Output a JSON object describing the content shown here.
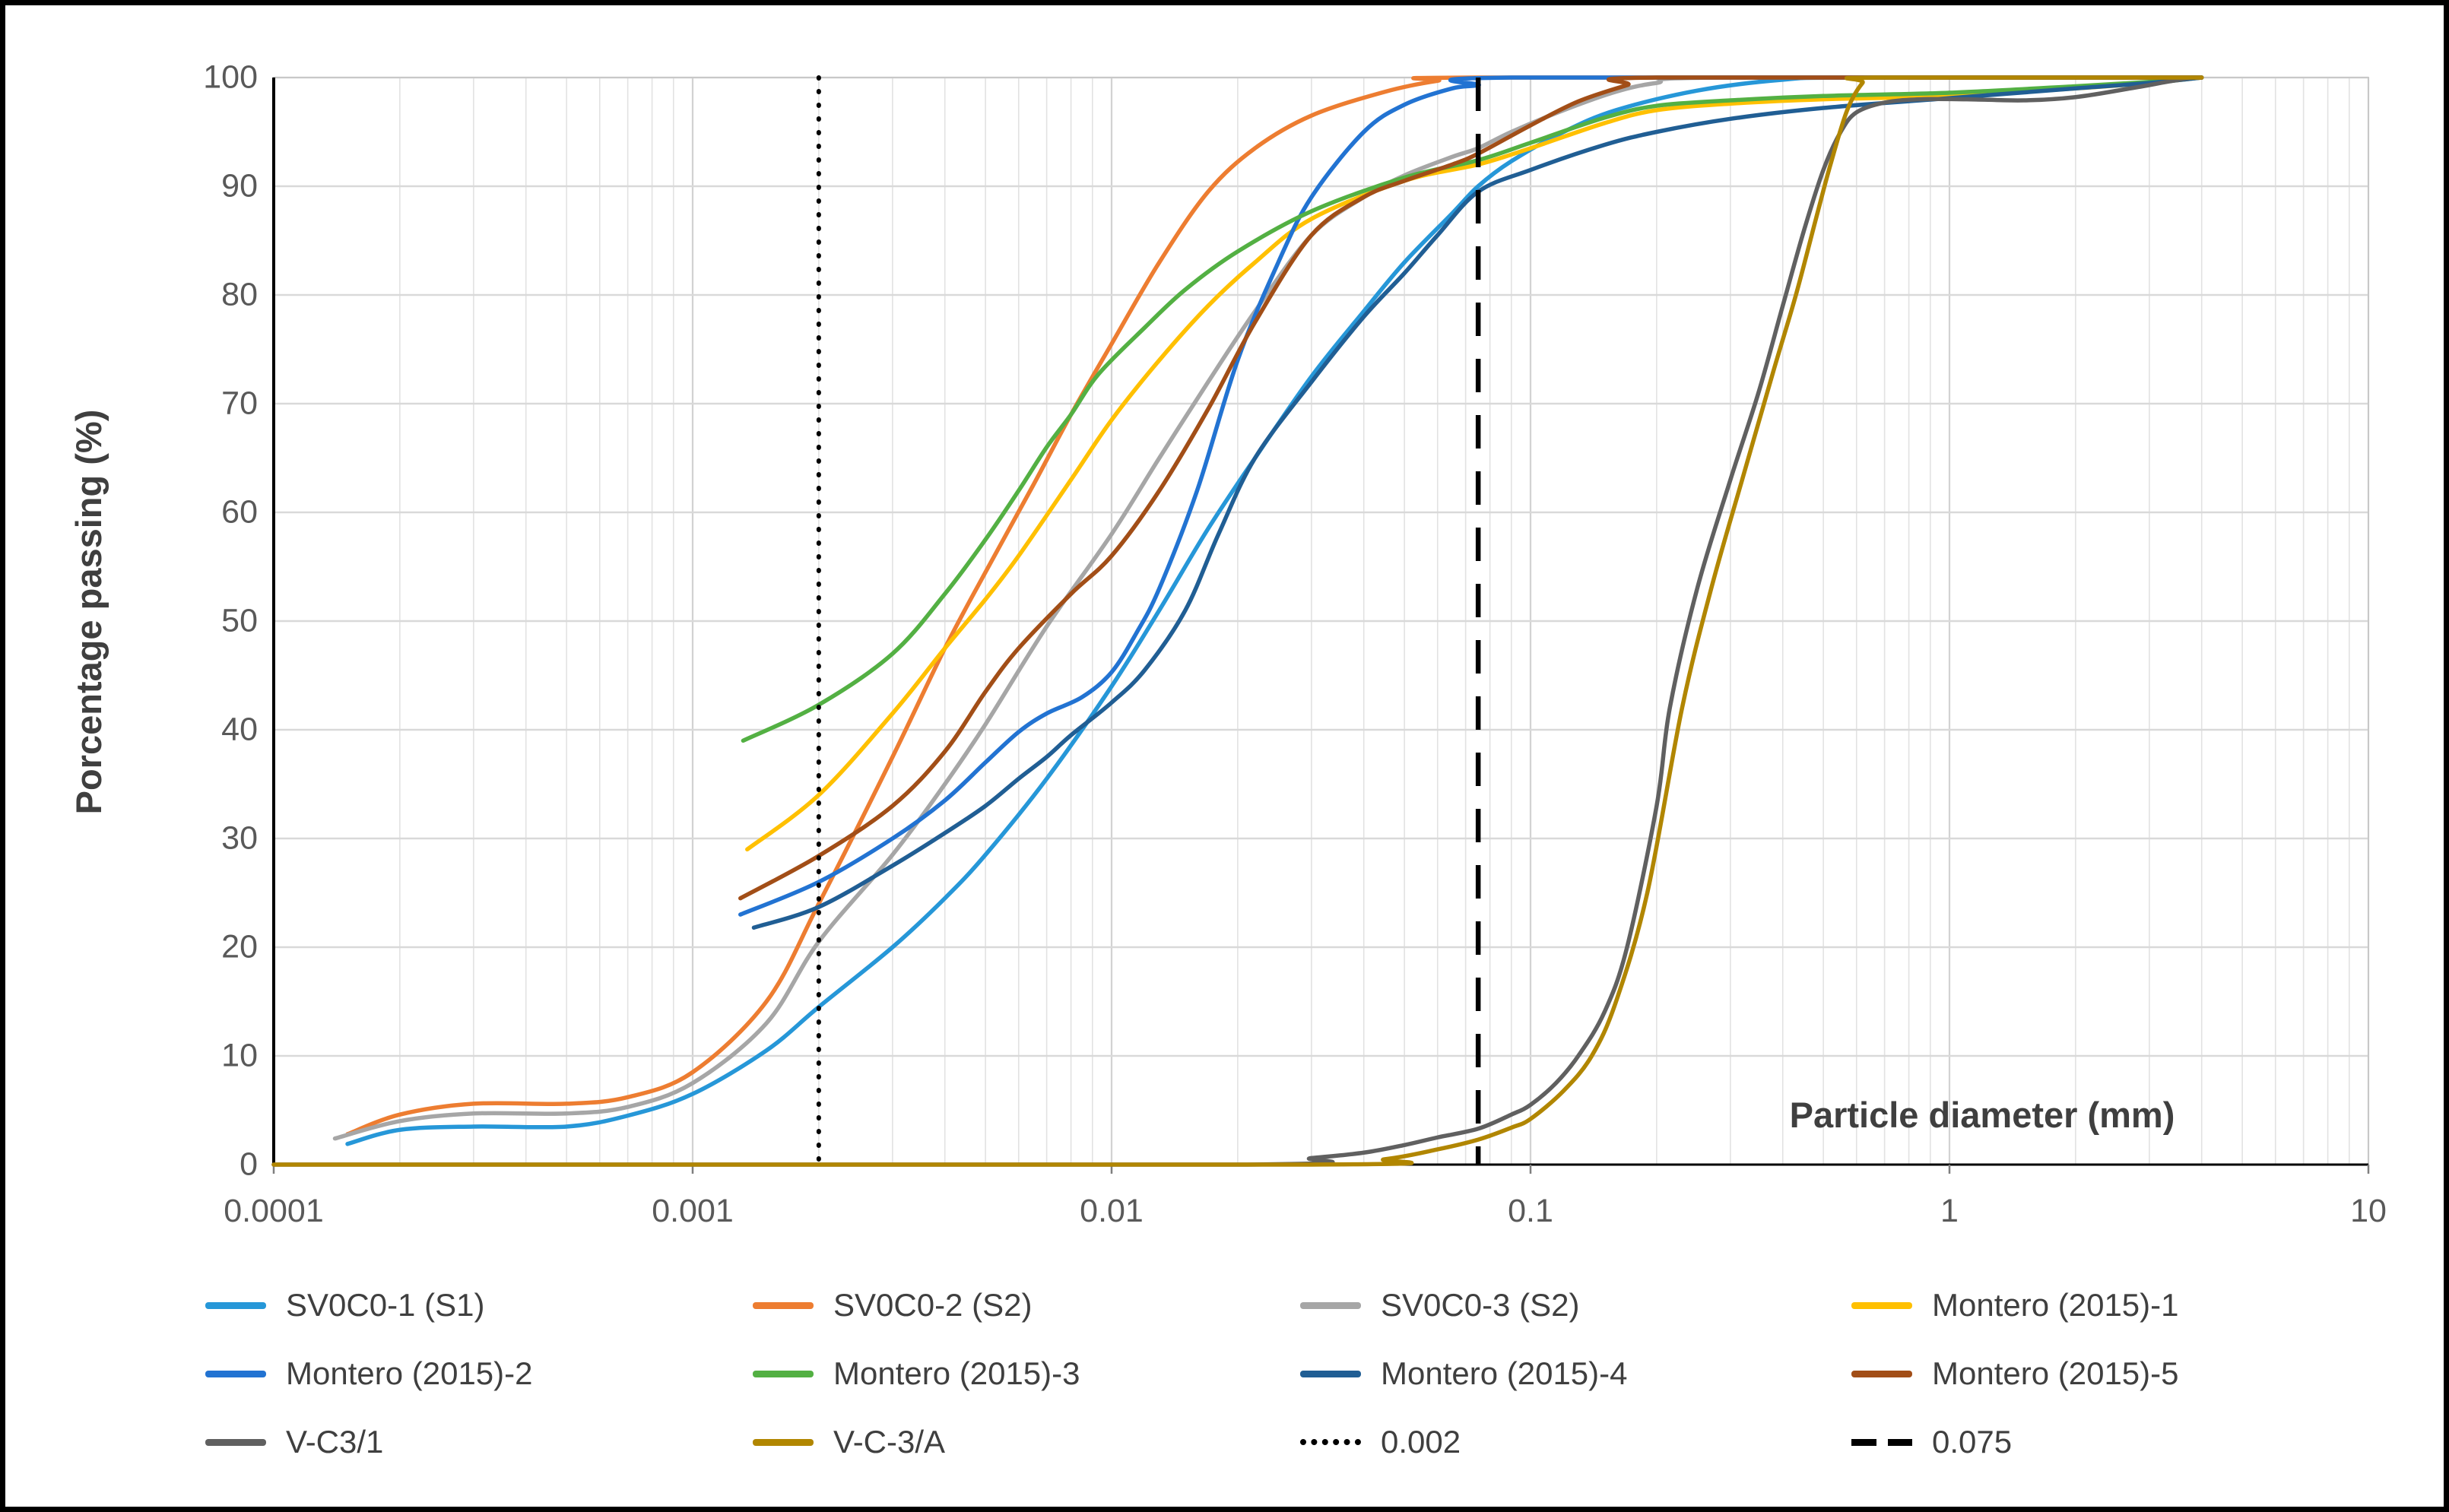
{
  "chart_data": {
    "type": "line",
    "x_scale": "log",
    "xlabel": "Particle diameter (mm)",
    "ylabel": "Porcentage passing (%)",
    "xlim": [
      0.0001,
      10
    ],
    "ylim": [
      0,
      100
    ],
    "grid": "on",
    "legend_position": "bottom",
    "x_ticks": [
      "0.0001",
      "0.001",
      "0.01",
      "0.1",
      "1",
      "10"
    ],
    "y_ticks": [
      "0",
      "10",
      "20",
      "30",
      "40",
      "50",
      "60",
      "70",
      "80",
      "90",
      "100"
    ],
    "colors": {
      "grid_minor": "#e2e2e2",
      "grid_major": "#d2d2d2",
      "axis_line": "#000000",
      "frame_line": "#c8c8c8",
      "tick_text": "#595959",
      "title_text": "#3f3f3f"
    },
    "series": [
      {
        "name": "SV0C0-1 (S1)",
        "color": "#2697d8",
        "style": "solid",
        "points": [
          [
            0.00015,
            1.9
          ],
          [
            0.0002,
            3.2
          ],
          [
            0.0003,
            3.5
          ],
          [
            0.0005,
            3.5
          ],
          [
            0.0007,
            4.5
          ],
          [
            0.001,
            6.5
          ],
          [
            0.0015,
            10.5
          ],
          [
            0.002,
            14.5
          ],
          [
            0.003,
            20
          ],
          [
            0.004,
            24.5
          ],
          [
            0.005,
            28.5
          ],
          [
            0.007,
            35.5
          ],
          [
            0.01,
            44
          ],
          [
            0.013,
            51
          ],
          [
            0.017,
            58.5
          ],
          [
            0.022,
            65
          ],
          [
            0.03,
            72.5
          ],
          [
            0.04,
            78.5
          ],
          [
            0.05,
            83
          ],
          [
            0.065,
            87.5
          ],
          [
            0.075,
            90
          ],
          [
            0.09,
            92.3
          ],
          [
            0.12,
            95
          ],
          [
            0.16,
            97
          ],
          [
            0.25,
            98.8
          ],
          [
            0.4,
            99.8
          ],
          [
            0.6,
            100
          ],
          [
            4,
            100
          ]
        ]
      },
      {
        "name": "SV0C0-2 (S2)",
        "color": "#ed7d31",
        "style": "solid",
        "points": [
          [
            0.00015,
            2.8
          ],
          [
            0.0002,
            4.6
          ],
          [
            0.0003,
            5.6
          ],
          [
            0.0005,
            5.6
          ],
          [
            0.0007,
            6.2
          ],
          [
            0.001,
            8.5
          ],
          [
            0.0015,
            15
          ],
          [
            0.002,
            24
          ],
          [
            0.003,
            37.5
          ],
          [
            0.004,
            47.5
          ],
          [
            0.005,
            54.5
          ],
          [
            0.0065,
            62.5
          ],
          [
            0.008,
            69
          ],
          [
            0.01,
            75.5
          ],
          [
            0.013,
            83
          ],
          [
            0.017,
            89.5
          ],
          [
            0.022,
            93.5
          ],
          [
            0.03,
            96.5
          ],
          [
            0.045,
            98.7
          ],
          [
            0.06,
            99.7
          ],
          [
            0.075,
            100
          ],
          [
            4,
            100
          ]
        ]
      },
      {
        "name": "SV0C0-3 (S2)",
        "color": "#a6a6a6",
        "style": "solid",
        "points": [
          [
            0.00014,
            2.4
          ],
          [
            0.0002,
            4
          ],
          [
            0.0003,
            4.7
          ],
          [
            0.0005,
            4.7
          ],
          [
            0.0007,
            5.3
          ],
          [
            0.001,
            7.5
          ],
          [
            0.0015,
            13
          ],
          [
            0.002,
            20.5
          ],
          [
            0.003,
            28.5
          ],
          [
            0.004,
            35
          ],
          [
            0.005,
            40.5
          ],
          [
            0.007,
            49.5
          ],
          [
            0.01,
            58
          ],
          [
            0.013,
            65
          ],
          [
            0.017,
            72
          ],
          [
            0.022,
            78.5
          ],
          [
            0.03,
            85.5
          ],
          [
            0.04,
            89
          ],
          [
            0.05,
            91
          ],
          [
            0.065,
            92.7
          ],
          [
            0.075,
            93.5
          ],
          [
            0.09,
            95
          ],
          [
            0.12,
            97
          ],
          [
            0.16,
            98.7
          ],
          [
            0.2,
            99.5
          ],
          [
            0.28,
            100
          ],
          [
            4,
            100
          ]
        ]
      },
      {
        "name": "Montero (2015)-1",
        "color": "#ffc000",
        "style": "solid",
        "points": [
          [
            0.00135,
            29
          ],
          [
            0.002,
            34
          ],
          [
            0.003,
            41.5
          ],
          [
            0.004,
            47.5
          ],
          [
            0.005,
            52
          ],
          [
            0.006,
            56
          ],
          [
            0.008,
            63
          ],
          [
            0.01,
            68.5
          ],
          [
            0.013,
            74
          ],
          [
            0.017,
            79
          ],
          [
            0.022,
            83
          ],
          [
            0.03,
            87
          ],
          [
            0.05,
            90.5
          ],
          [
            0.075,
            92
          ],
          [
            0.1,
            93.5
          ],
          [
            0.15,
            95.8
          ],
          [
            0.2,
            97
          ],
          [
            0.3,
            97.6
          ],
          [
            0.5,
            98
          ],
          [
            1,
            98.3
          ],
          [
            2,
            99
          ],
          [
            3,
            99.5
          ],
          [
            4,
            100
          ]
        ]
      },
      {
        "name": "Montero (2015)-2",
        "color": "#2273d2",
        "style": "solid",
        "points": [
          [
            0.0013,
            23
          ],
          [
            0.002,
            26
          ],
          [
            0.003,
            30
          ],
          [
            0.004,
            33.5
          ],
          [
            0.005,
            37
          ],
          [
            0.006,
            39.8
          ],
          [
            0.007,
            41.5
          ],
          [
            0.0085,
            43
          ],
          [
            0.01,
            45.3
          ],
          [
            0.0115,
            49
          ],
          [
            0.013,
            53
          ],
          [
            0.016,
            62
          ],
          [
            0.02,
            74
          ],
          [
            0.025,
            83
          ],
          [
            0.03,
            89
          ],
          [
            0.04,
            95
          ],
          [
            0.05,
            97.5
          ],
          [
            0.065,
            99
          ],
          [
            0.075,
            99.3
          ],
          [
            0.09,
            100
          ],
          [
            4,
            100
          ]
        ]
      },
      {
        "name": "Montero (2015)-3",
        "color": "#53b043",
        "style": "solid",
        "points": [
          [
            0.00132,
            39
          ],
          [
            0.002,
            42.3
          ],
          [
            0.003,
            47
          ],
          [
            0.004,
            52.5
          ],
          [
            0.005,
            57.5
          ],
          [
            0.006,
            62
          ],
          [
            0.007,
            66
          ],
          [
            0.008,
            69
          ],
          [
            0.0093,
            72.7
          ],
          [
            0.012,
            77
          ],
          [
            0.015,
            80.5
          ],
          [
            0.02,
            84
          ],
          [
            0.03,
            87.7
          ],
          [
            0.05,
            90.8
          ],
          [
            0.075,
            92.4
          ],
          [
            0.1,
            94
          ],
          [
            0.15,
            96.3
          ],
          [
            0.2,
            97.4
          ],
          [
            0.3,
            97.9
          ],
          [
            0.5,
            98.3
          ],
          [
            1,
            98.6
          ],
          [
            2,
            99.2
          ],
          [
            3,
            99.6
          ],
          [
            4,
            100
          ]
        ]
      },
      {
        "name": "Montero (2015)-4",
        "color": "#205e94",
        "style": "solid",
        "points": [
          [
            0.0014,
            21.8
          ],
          [
            0.002,
            23.7
          ],
          [
            0.003,
            27.5
          ],
          [
            0.004,
            30.5
          ],
          [
            0.005,
            33
          ],
          [
            0.006,
            35.5
          ],
          [
            0.007,
            37.5
          ],
          [
            0.008,
            39.5
          ],
          [
            0.01,
            42.5
          ],
          [
            0.012,
            45.5
          ],
          [
            0.015,
            51
          ],
          [
            0.018,
            58
          ],
          [
            0.022,
            65
          ],
          [
            0.03,
            72
          ],
          [
            0.04,
            78
          ],
          [
            0.05,
            82
          ],
          [
            0.06,
            85.5
          ],
          [
            0.075,
            89.5
          ],
          [
            0.1,
            91.5
          ],
          [
            0.15,
            93.8
          ],
          [
            0.2,
            95
          ],
          [
            0.3,
            96.2
          ],
          [
            0.5,
            97.2
          ],
          [
            1,
            98.1
          ],
          [
            2,
            99
          ],
          [
            3,
            99.5
          ],
          [
            4,
            100
          ]
        ]
      },
      {
        "name": "Montero (2015)-5",
        "color": "#a24e17",
        "style": "solid",
        "points": [
          [
            0.0013,
            24.5
          ],
          [
            0.002,
            28.4
          ],
          [
            0.003,
            33
          ],
          [
            0.004,
            38
          ],
          [
            0.005,
            43.5
          ],
          [
            0.006,
            47.5
          ],
          [
            0.008,
            52.5
          ],
          [
            0.01,
            56
          ],
          [
            0.013,
            62
          ],
          [
            0.017,
            69.5
          ],
          [
            0.022,
            77.5
          ],
          [
            0.03,
            85.5
          ],
          [
            0.04,
            89
          ],
          [
            0.05,
            90.5
          ],
          [
            0.065,
            92
          ],
          [
            0.075,
            93
          ],
          [
            0.1,
            95.6
          ],
          [
            0.13,
            97.8
          ],
          [
            0.17,
            99.3
          ],
          [
            0.2,
            100
          ],
          [
            4,
            100
          ]
        ]
      },
      {
        "name": "V-C3/1",
        "color": "#606060",
        "style": "solid",
        "points": [
          [
            0.0001,
            0
          ],
          [
            0.02,
            0
          ],
          [
            0.03,
            0.6
          ],
          [
            0.04,
            1.1
          ],
          [
            0.05,
            1.8
          ],
          [
            0.06,
            2.5
          ],
          [
            0.075,
            3.3
          ],
          [
            0.09,
            4.6
          ],
          [
            0.1,
            5.5
          ],
          [
            0.115,
            7.5
          ],
          [
            0.13,
            10
          ],
          [
            0.15,
            14
          ],
          [
            0.17,
            20
          ],
          [
            0.2,
            33
          ],
          [
            0.215,
            42
          ],
          [
            0.25,
            53
          ],
          [
            0.3,
            63
          ],
          [
            0.35,
            71
          ],
          [
            0.4,
            79
          ],
          [
            0.45,
            86
          ],
          [
            0.5,
            91.5
          ],
          [
            0.55,
            95
          ],
          [
            0.6,
            96.8
          ],
          [
            0.7,
            97.7
          ],
          [
            0.85,
            98
          ],
          [
            1.1,
            98
          ],
          [
            1.5,
            97.9
          ],
          [
            2,
            98.2
          ],
          [
            2.7,
            99
          ],
          [
            3.3,
            99.6
          ],
          [
            3.8,
            100
          ],
          [
            4,
            100
          ]
        ]
      },
      {
        "name": "V-C-3/A",
        "color": "#b18600",
        "style": "solid",
        "points": [
          [
            0.0001,
            0
          ],
          [
            0.03,
            0
          ],
          [
            0.045,
            0.5
          ],
          [
            0.06,
            1.4
          ],
          [
            0.075,
            2.3
          ],
          [
            0.09,
            3.4
          ],
          [
            0.1,
            4.2
          ],
          [
            0.12,
            6.8
          ],
          [
            0.14,
            10
          ],
          [
            0.16,
            15
          ],
          [
            0.19,
            25
          ],
          [
            0.23,
            42
          ],
          [
            0.27,
            53
          ],
          [
            0.32,
            63
          ],
          [
            0.38,
            73
          ],
          [
            0.43,
            80
          ],
          [
            0.48,
            87
          ],
          [
            0.52,
            92
          ],
          [
            0.57,
            97
          ],
          [
            0.62,
            99.5
          ],
          [
            0.66,
            100
          ],
          [
            4,
            100
          ]
        ]
      }
    ],
    "reference_lines": [
      {
        "name": "0.002",
        "x": 0.002,
        "style": "dotted",
        "color": "#000000"
      },
      {
        "name": "0.075",
        "x": 0.075,
        "style": "dashed",
        "color": "#000000"
      }
    ]
  },
  "legend": {
    "items": [
      {
        "label": "SV0C0-1 (S1)",
        "color": "#2697d8",
        "style": "solid"
      },
      {
        "label": "SV0C0-2 (S2)",
        "color": "#ed7d31",
        "style": "solid"
      },
      {
        "label": "SV0C0-3 (S2)",
        "color": "#a6a6a6",
        "style": "solid"
      },
      {
        "label": "Montero (2015)-1",
        "color": "#ffc000",
        "style": "solid"
      },
      {
        "label": "Montero (2015)-2",
        "color": "#2273d2",
        "style": "solid"
      },
      {
        "label": "Montero (2015)-3",
        "color": "#53b043",
        "style": "solid"
      },
      {
        "label": "Montero (2015)-4",
        "color": "#205e94",
        "style": "solid"
      },
      {
        "label": "Montero (2015)-5",
        "color": "#a24e17",
        "style": "solid"
      },
      {
        "label": "V-C3/1",
        "color": "#606060",
        "style": "solid"
      },
      {
        "label": "V-C-3/A",
        "color": "#b18600",
        "style": "solid"
      },
      {
        "label": "0.002",
        "color": "#000000",
        "style": "dotted"
      },
      {
        "label": "0.075",
        "color": "#000000",
        "style": "dashed"
      }
    ]
  }
}
